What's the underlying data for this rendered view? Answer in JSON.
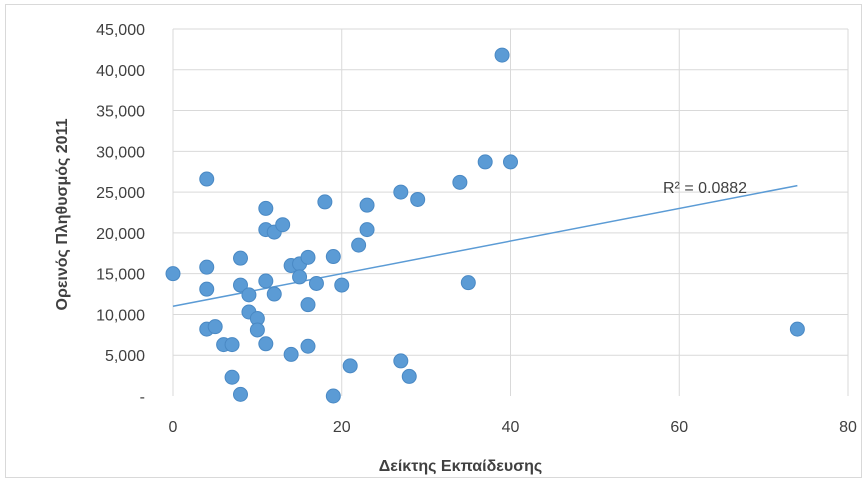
{
  "chart_data": {
    "type": "scatter",
    "title": "",
    "xlabel": "Δείκτης Εκπαίδευσης",
    "ylabel": "Ορεινός Πληθυσμός 2011",
    "xlim": [
      0,
      80
    ],
    "ylim": [
      0,
      45000
    ],
    "x_ticks": [
      0,
      20,
      40,
      60,
      80
    ],
    "y_ticks": [
      0,
      5000,
      10000,
      15000,
      20000,
      25000,
      30000,
      35000,
      40000,
      45000
    ],
    "y_tick_labels": [
      "-",
      "5,000",
      "10,000",
      "15,000",
      "20,000",
      "25,000",
      "30,000",
      "35,000",
      "40,000",
      "45,000"
    ],
    "grid": true,
    "legend": "none",
    "marker_color": "#5b9bd5",
    "trendline": {
      "type": "linear",
      "color": "#5b9bd5",
      "x": [
        0,
        74
      ],
      "y": [
        11000,
        25800
      ],
      "r2_label": "R² = 0.0882"
    },
    "series": [
      {
        "points": [
          [
            0,
            15000
          ],
          [
            4,
            26600
          ],
          [
            4,
            15800
          ],
          [
            4,
            13100
          ],
          [
            4,
            8200
          ],
          [
            5,
            8500
          ],
          [
            6,
            6300
          ],
          [
            7,
            6300
          ],
          [
            7,
            2300
          ],
          [
            8,
            200
          ],
          [
            8,
            16900
          ],
          [
            8,
            13600
          ],
          [
            9,
            12400
          ],
          [
            9,
            10300
          ],
          [
            10,
            9500
          ],
          [
            10,
            8100
          ],
          [
            11,
            23000
          ],
          [
            11,
            20400
          ],
          [
            11,
            14100
          ],
          [
            11,
            6400
          ],
          [
            12,
            20100
          ],
          [
            12,
            12500
          ],
          [
            13,
            21000
          ],
          [
            14,
            16000
          ],
          [
            14,
            5100
          ],
          [
            15,
            16200
          ],
          [
            15,
            14600
          ],
          [
            16,
            17000
          ],
          [
            16,
            11200
          ],
          [
            16,
            6100
          ],
          [
            17,
            13800
          ],
          [
            18,
            23800
          ],
          [
            19,
            17100
          ],
          [
            19,
            0
          ],
          [
            20,
            13600
          ],
          [
            21,
            3700
          ],
          [
            22,
            18500
          ],
          [
            23,
            23400
          ],
          [
            23,
            20400
          ],
          [
            27,
            25000
          ],
          [
            27,
            4300
          ],
          [
            28,
            2400
          ],
          [
            29,
            24100
          ],
          [
            34,
            26200
          ],
          [
            35,
            13900
          ],
          [
            37,
            28700
          ],
          [
            39,
            41800
          ],
          [
            40,
            28700
          ],
          [
            74,
            8200
          ]
        ]
      }
    ]
  }
}
